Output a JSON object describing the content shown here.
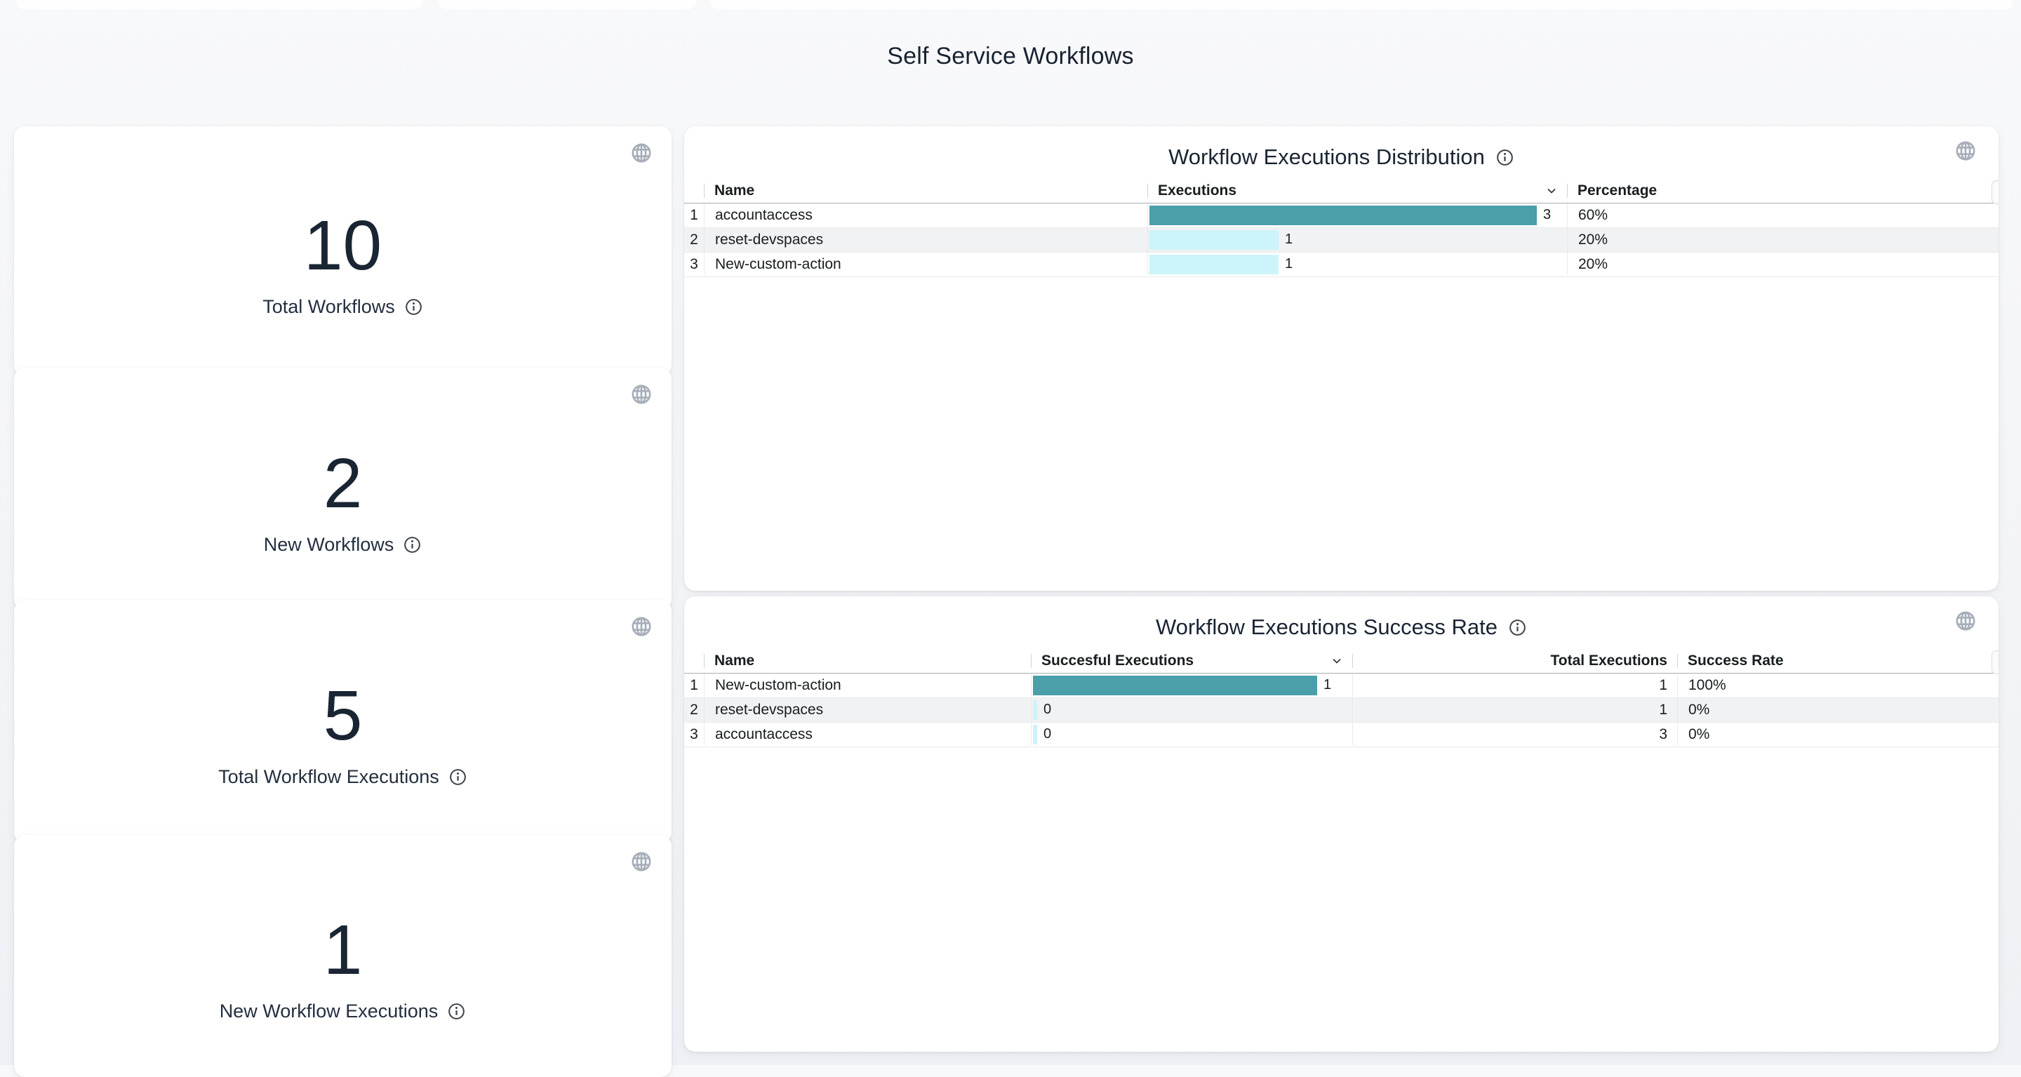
{
  "page": {
    "title": "Self Service Workflows"
  },
  "colors": {
    "teal": "#4A9FA8",
    "cyan": "#CDF4FA",
    "icon_gray": "#A7AEB9",
    "text_dark": "#1A2533"
  },
  "kpis": [
    {
      "value": "10",
      "label": "Total Workflows"
    },
    {
      "value": "2",
      "label": "New Workflows"
    },
    {
      "value": "5",
      "label": "Total Workflow Executions"
    },
    {
      "value": "1",
      "label": "New Workflow Executions"
    }
  ],
  "distribution_table": {
    "title": "Workflow Executions Distribution",
    "columns": [
      "Name",
      "Executions",
      "Percentage"
    ],
    "sorted_by": "Executions",
    "rows": [
      {
        "index": "1",
        "name": "accountaccess",
        "executions": 3,
        "percentage": "60%"
      },
      {
        "index": "2",
        "name": "reset-devspaces",
        "executions": 1,
        "percentage": "20%"
      },
      {
        "index": "3",
        "name": "New-custom-action",
        "executions": 1,
        "percentage": "20%"
      }
    ]
  },
  "success_table": {
    "title": "Workflow Executions Success Rate",
    "columns": [
      "Name",
      "Succesful Executions",
      "Total Executions",
      "Success Rate"
    ],
    "sorted_by": "Succesful Executions",
    "rows": [
      {
        "index": "1",
        "name": "New-custom-action",
        "successful": 1,
        "total": "1",
        "rate": "100%"
      },
      {
        "index": "2",
        "name": "reset-devspaces",
        "successful": 0,
        "total": "1",
        "rate": "0%"
      },
      {
        "index": "3",
        "name": "accountaccess",
        "successful": 0,
        "total": "3",
        "rate": "0%"
      }
    ]
  }
}
